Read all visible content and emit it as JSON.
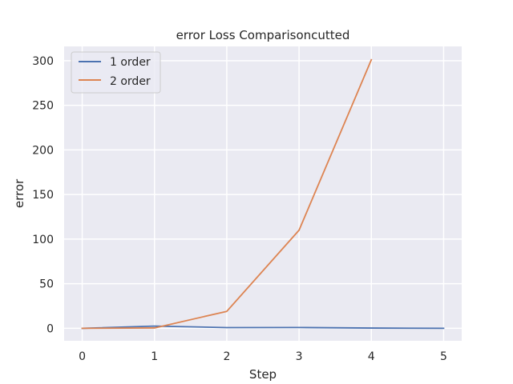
{
  "chart_data": {
    "type": "line",
    "title": "error Loss Comparisoncutted",
    "xlabel": "Step",
    "ylabel": "error",
    "xlim": [
      -0.25,
      5.25
    ],
    "ylim": [
      -14,
      316
    ],
    "xticks": [
      0,
      1,
      2,
      3,
      4,
      5
    ],
    "yticks": [
      0,
      50,
      100,
      150,
      200,
      250,
      300
    ],
    "grid": true,
    "legend_position": "top-left",
    "series": [
      {
        "name": "1 order",
        "color": "#4c72b0",
        "x": [
          0,
          1,
          2,
          3,
          4,
          5
        ],
        "values": [
          0,
          2.5,
          0.8,
          0.9,
          0.3,
          0
        ]
      },
      {
        "name": "2 order",
        "color": "#dd8452",
        "x": [
          0,
          1,
          2,
          3,
          4
        ],
        "values": [
          0,
          0.4,
          19,
          110,
          301
        ]
      }
    ],
    "colors": {
      "plot_background": "#eaeaf2",
      "grid": "#ffffff"
    }
  }
}
